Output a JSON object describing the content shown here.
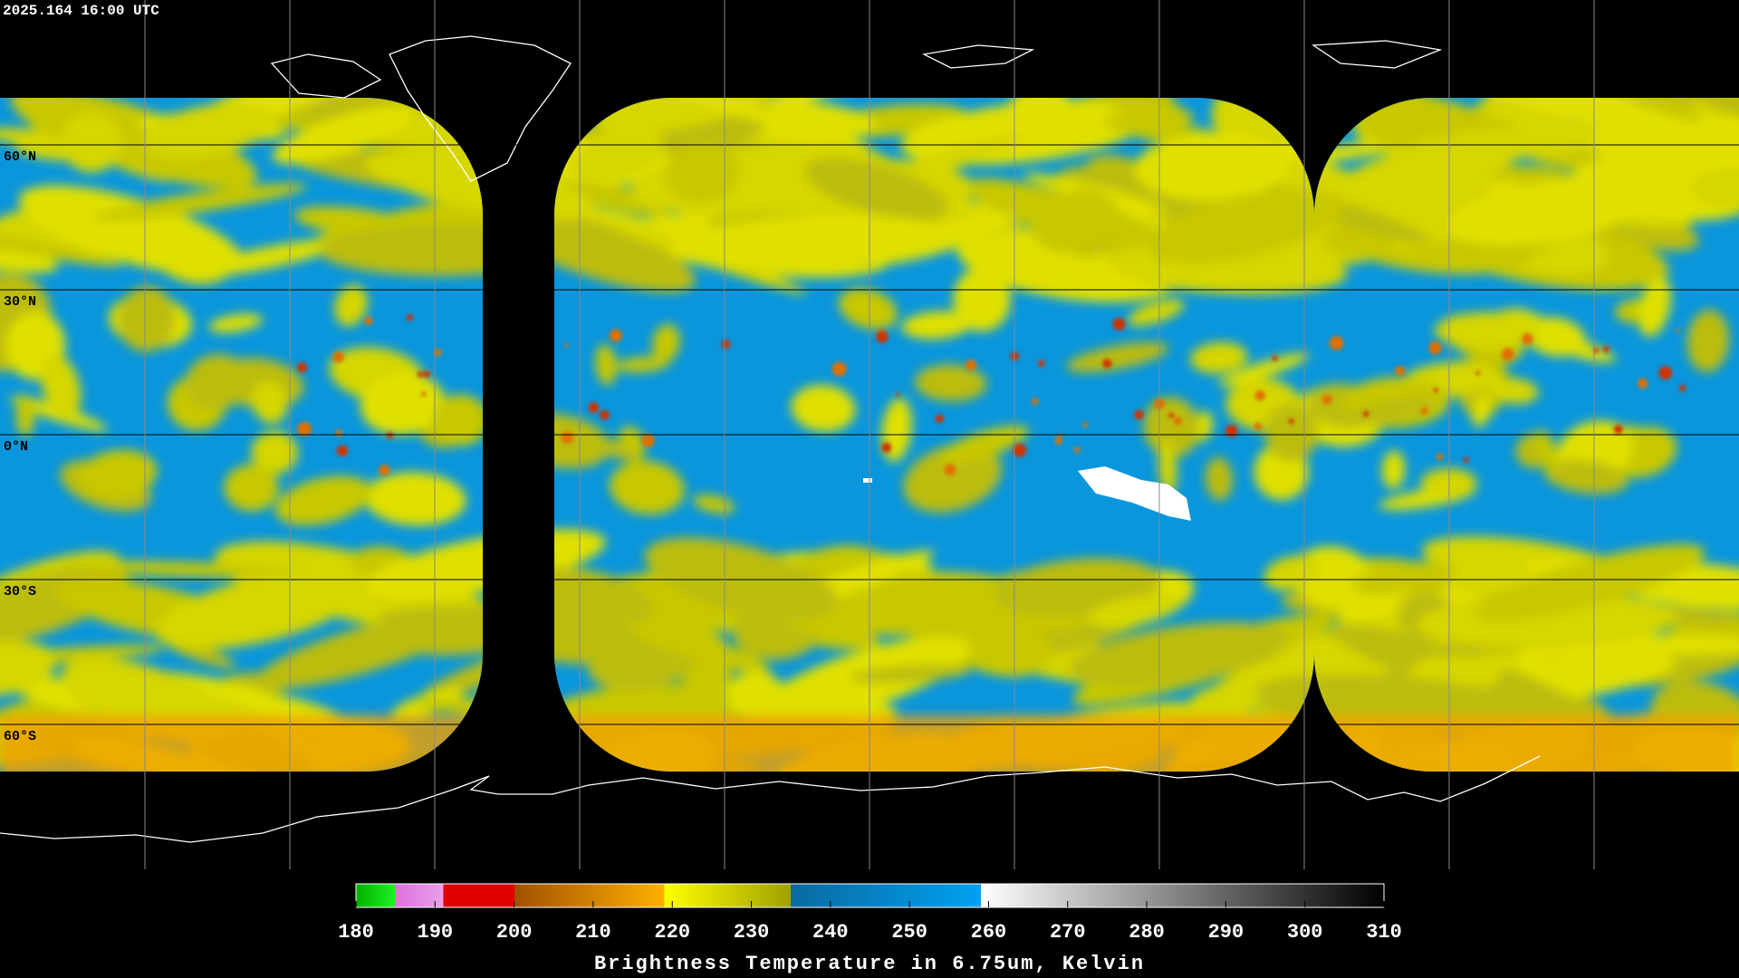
{
  "header": {
    "timestamp": "2025.164 16:00 UTC"
  },
  "map": {
    "lat_lines": [
      {
        "value": 60,
        "label": "60°N"
      },
      {
        "value": 30,
        "label": "30°N"
      },
      {
        "value": 0,
        "label": "0°N"
      },
      {
        "value": -30,
        "label": "30°S"
      },
      {
        "value": -60,
        "label": "60°S"
      }
    ]
  },
  "colorbar": {
    "ticks": [
      180,
      190,
      200,
      210,
      220,
      230,
      240,
      250,
      260,
      270,
      280,
      290,
      300,
      310
    ],
    "title": "Brightness Temperature in 6.75um, Kelvin"
  }
}
